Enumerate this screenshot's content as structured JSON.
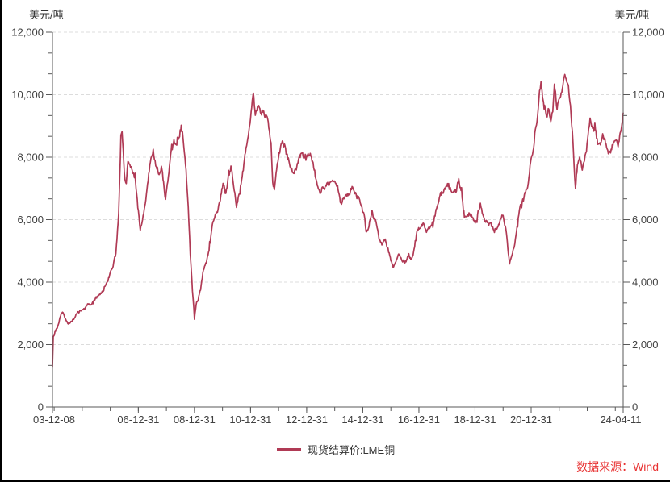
{
  "chart": {
    "unit_left": "美元/吨",
    "unit_right": "美元/吨",
    "source_note": "数据来源：Wind",
    "source_color": "#e83232",
    "axis_color": "#595959",
    "tick_label_color": "#404040",
    "grid_color": "#dcdcdc",
    "background": "#ffffff"
  },
  "chart_data": {
    "type": "line",
    "title": "",
    "ylabel_left": "美元/吨",
    "ylabel_right": "美元/吨",
    "ylim": [
      0,
      12000
    ],
    "xlim": [
      2003.94,
      2024.28
    ],
    "grid": "horizontal-dashed",
    "legend_position": "bottom-center",
    "y_ticks": [
      {
        "v": 0,
        "label": "0"
      },
      {
        "v": 2000,
        "label": "2,000"
      },
      {
        "v": 4000,
        "label": "4,000"
      },
      {
        "v": 6000,
        "label": "6,000"
      },
      {
        "v": 8000,
        "label": "8,000"
      },
      {
        "v": 10000,
        "label": "10,000"
      },
      {
        "v": 12000,
        "label": "12,000"
      }
    ],
    "y_minor_divisions_per_major": 3,
    "x_labeled_ticks": [
      {
        "x": 2003.94,
        "label": "03-12-08"
      },
      {
        "x": 2007.0,
        "label": "06-12-31"
      },
      {
        "x": 2009.0,
        "label": "08-12-31"
      },
      {
        "x": 2011.0,
        "label": "10-12-31"
      },
      {
        "x": 2013.0,
        "label": "12-12-31"
      },
      {
        "x": 2015.0,
        "label": "14-12-31"
      },
      {
        "x": 2017.0,
        "label": "16-12-31"
      },
      {
        "x": 2019.0,
        "label": "18-12-31"
      },
      {
        "x": 2021.0,
        "label": "20-12-31"
      },
      {
        "x": 2024.28,
        "label": "24-04-11"
      }
    ],
    "x_minor_ticks_yearly": {
      "from": 2004,
      "to": 2024,
      "step": 1
    },
    "series": [
      {
        "name": "现货结算价:LME铜",
        "color": "#b03a55",
        "unit": "美元/吨",
        "anchors": [
          [
            2003.94,
            1300
          ],
          [
            2003.97,
            2250
          ],
          [
            2004.05,
            2400
          ],
          [
            2004.15,
            2600
          ],
          [
            2004.25,
            2950
          ],
          [
            2004.32,
            3050
          ],
          [
            2004.4,
            2800
          ],
          [
            2004.5,
            2650
          ],
          [
            2004.6,
            2750
          ],
          [
            2004.7,
            2850
          ],
          [
            2004.8,
            2950
          ],
          [
            2004.9,
            3050
          ],
          [
            2005.0,
            3100
          ],
          [
            2005.15,
            3250
          ],
          [
            2005.3,
            3320
          ],
          [
            2005.45,
            3400
          ],
          [
            2005.6,
            3550
          ],
          [
            2005.75,
            3700
          ],
          [
            2005.9,
            4000
          ],
          [
            2006.0,
            4250
          ],
          [
            2006.1,
            4550
          ],
          [
            2006.2,
            4950
          ],
          [
            2006.3,
            6200
          ],
          [
            2006.38,
            8650
          ],
          [
            2006.42,
            8800
          ],
          [
            2006.5,
            7400
          ],
          [
            2006.57,
            7100
          ],
          [
            2006.63,
            7900
          ],
          [
            2006.72,
            7700
          ],
          [
            2006.82,
            7500
          ],
          [
            2006.9,
            7100
          ],
          [
            2006.98,
            6400
          ],
          [
            2007.07,
            5650
          ],
          [
            2007.15,
            5950
          ],
          [
            2007.25,
            6550
          ],
          [
            2007.35,
            7300
          ],
          [
            2007.45,
            7900
          ],
          [
            2007.53,
            8200
          ],
          [
            2007.62,
            7800
          ],
          [
            2007.72,
            7450
          ],
          [
            2007.82,
            7650
          ],
          [
            2007.9,
            7100
          ],
          [
            2007.97,
            6650
          ],
          [
            2008.05,
            7150
          ],
          [
            2008.15,
            7950
          ],
          [
            2008.25,
            8500
          ],
          [
            2008.35,
            8400
          ],
          [
            2008.45,
            8650
          ],
          [
            2008.53,
            8950
          ],
          [
            2008.62,
            8350
          ],
          [
            2008.7,
            7600
          ],
          [
            2008.78,
            6400
          ],
          [
            2008.85,
            4900
          ],
          [
            2008.93,
            3700
          ],
          [
            2009.0,
            2850
          ],
          [
            2009.06,
            3250
          ],
          [
            2009.13,
            3400
          ],
          [
            2009.22,
            3700
          ],
          [
            2009.32,
            4350
          ],
          [
            2009.42,
            4600
          ],
          [
            2009.52,
            5050
          ],
          [
            2009.62,
            5750
          ],
          [
            2009.72,
            6100
          ],
          [
            2009.82,
            6300
          ],
          [
            2009.92,
            6650
          ],
          [
            2010.02,
            7300
          ],
          [
            2010.12,
            6900
          ],
          [
            2010.22,
            7450
          ],
          [
            2010.32,
            7700
          ],
          [
            2010.42,
            6900
          ],
          [
            2010.5,
            6450
          ],
          [
            2010.6,
            6800
          ],
          [
            2010.7,
            7300
          ],
          [
            2010.8,
            8050
          ],
          [
            2010.9,
            8600
          ],
          [
            2011.0,
            9450
          ],
          [
            2011.1,
            10100
          ],
          [
            2011.17,
            9550
          ],
          [
            2011.27,
            9800
          ],
          [
            2011.37,
            9350
          ],
          [
            2011.47,
            9650
          ],
          [
            2011.57,
            9450
          ],
          [
            2011.65,
            9050
          ],
          [
            2011.73,
            8400
          ],
          [
            2011.79,
            7100
          ],
          [
            2011.85,
            6900
          ],
          [
            2011.93,
            7600
          ],
          [
            2012.02,
            8050
          ],
          [
            2012.13,
            8500
          ],
          [
            2012.25,
            8350
          ],
          [
            2012.35,
            7950
          ],
          [
            2012.45,
            7500
          ],
          [
            2012.55,
            7450
          ],
          [
            2012.65,
            7650
          ],
          [
            2012.75,
            7950
          ],
          [
            2012.85,
            8100
          ],
          [
            2012.95,
            7900
          ],
          [
            2013.05,
            8100
          ],
          [
            2013.13,
            8200
          ],
          [
            2013.25,
            7600
          ],
          [
            2013.38,
            7100
          ],
          [
            2013.5,
            6900
          ],
          [
            2013.62,
            7050
          ],
          [
            2013.75,
            7150
          ],
          [
            2013.88,
            7250
          ],
          [
            2014.0,
            7350
          ],
          [
            2014.1,
            7050
          ],
          [
            2014.2,
            6500
          ],
          [
            2014.33,
            6700
          ],
          [
            2014.47,
            6850
          ],
          [
            2014.6,
            7050
          ],
          [
            2014.73,
            6850
          ],
          [
            2014.85,
            6700
          ],
          [
            2014.95,
            6400
          ],
          [
            2015.05,
            6100
          ],
          [
            2015.12,
            5550
          ],
          [
            2015.22,
            5850
          ],
          [
            2015.33,
            6250
          ],
          [
            2015.45,
            6000
          ],
          [
            2015.58,
            5450
          ],
          [
            2015.7,
            5150
          ],
          [
            2015.8,
            5350
          ],
          [
            2015.9,
            5100
          ],
          [
            2016.0,
            4700
          ],
          [
            2016.08,
            4500
          ],
          [
            2016.18,
            4600
          ],
          [
            2016.28,
            4950
          ],
          [
            2016.38,
            4750
          ],
          [
            2016.5,
            4650
          ],
          [
            2016.62,
            4800
          ],
          [
            2016.75,
            4800
          ],
          [
            2016.85,
            5100
          ],
          [
            2016.95,
            5650
          ],
          [
            2017.05,
            5700
          ],
          [
            2017.15,
            5900
          ],
          [
            2017.27,
            5650
          ],
          [
            2017.4,
            5750
          ],
          [
            2017.52,
            5950
          ],
          [
            2017.65,
            6450
          ],
          [
            2017.77,
            6800
          ],
          [
            2017.9,
            6900
          ],
          [
            2018.0,
            7100
          ],
          [
            2018.1,
            7000
          ],
          [
            2018.2,
            6800
          ],
          [
            2018.32,
            6850
          ],
          [
            2018.42,
            7250
          ],
          [
            2018.52,
            6800
          ],
          [
            2018.62,
            6050
          ],
          [
            2018.72,
            6150
          ],
          [
            2018.85,
            6200
          ],
          [
            2018.95,
            6050
          ],
          [
            2019.05,
            5950
          ],
          [
            2019.17,
            6450
          ],
          [
            2019.3,
            6150
          ],
          [
            2019.42,
            5950
          ],
          [
            2019.55,
            5800
          ],
          [
            2019.67,
            5700
          ],
          [
            2019.8,
            5800
          ],
          [
            2019.92,
            6000
          ],
          [
            2020.0,
            6150
          ],
          [
            2020.1,
            5650
          ],
          [
            2020.17,
            5100
          ],
          [
            2020.23,
            4650
          ],
          [
            2020.3,
            4900
          ],
          [
            2020.4,
            5250
          ],
          [
            2020.5,
            5800
          ],
          [
            2020.6,
            6350
          ],
          [
            2020.7,
            6600
          ],
          [
            2020.8,
            6800
          ],
          [
            2020.9,
            7200
          ],
          [
            2021.0,
            7900
          ],
          [
            2021.07,
            8100
          ],
          [
            2021.15,
            8900
          ],
          [
            2021.23,
            9400
          ],
          [
            2021.3,
            10300
          ],
          [
            2021.35,
            10600
          ],
          [
            2021.42,
            10000
          ],
          [
            2021.5,
            9600
          ],
          [
            2021.57,
            9350
          ],
          [
            2021.63,
            9650
          ],
          [
            2021.7,
            9200
          ],
          [
            2021.77,
            9500
          ],
          [
            2021.83,
            10250
          ],
          [
            2021.9,
            9550
          ],
          [
            2021.97,
            9650
          ],
          [
            2022.05,
            9900
          ],
          [
            2022.13,
            10150
          ],
          [
            2022.2,
            10550
          ],
          [
            2022.27,
            10350
          ],
          [
            2022.33,
            10150
          ],
          [
            2022.4,
            9600
          ],
          [
            2022.47,
            8800
          ],
          [
            2022.53,
            7700
          ],
          [
            2022.58,
            7050
          ],
          [
            2022.65,
            7700
          ],
          [
            2022.73,
            7950
          ],
          [
            2022.82,
            7650
          ],
          [
            2022.9,
            7850
          ],
          [
            2022.97,
            8250
          ],
          [
            2023.05,
            8900
          ],
          [
            2023.1,
            9300
          ],
          [
            2023.17,
            8950
          ],
          [
            2023.27,
            8800
          ],
          [
            2023.37,
            8300
          ],
          [
            2023.47,
            8400
          ],
          [
            2023.57,
            8600
          ],
          [
            2023.67,
            8350
          ],
          [
            2023.77,
            8100
          ],
          [
            2023.87,
            8250
          ],
          [
            2023.95,
            8400
          ],
          [
            2024.03,
            8450
          ],
          [
            2024.1,
            8300
          ],
          [
            2024.17,
            8650
          ],
          [
            2024.23,
            8950
          ],
          [
            2024.28,
            9350
          ]
        ]
      }
    ],
    "legend": {
      "label": "现货结算价:LME铜"
    },
    "source_note": "数据来源：Wind"
  }
}
